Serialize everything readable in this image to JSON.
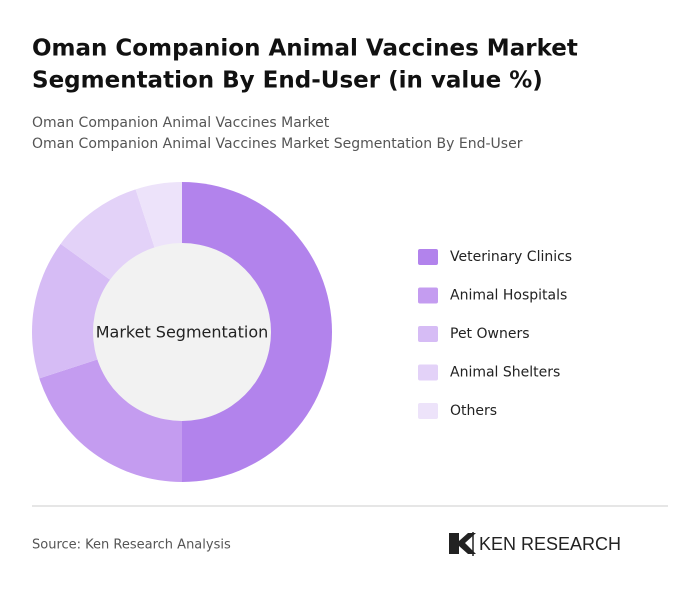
{
  "chart_data": {
    "type": "donut",
    "title": [
      "Oman Companion Animal Vaccines Market",
      "Segmentation By End-User (in value %)"
    ],
    "subtitle": [
      "Oman Companion Animal Vaccines Market",
      "Oman Companion Animal Vaccines Market Segmentation By End-User"
    ],
    "center_label": "Market Segmentation",
    "categories": [
      "Veterinary Clinics",
      "Animal Hospitals",
      "Pet Owners",
      "Animal Shelters",
      "Others"
    ],
    "values": [
      50,
      20,
      15,
      10,
      5
    ],
    "colors": [
      "#b283ec",
      "#c49cf0",
      "#d6bcf5",
      "#e3d2f8",
      "#ede3fa"
    ]
  },
  "footer": {
    "source": "Source: Ken Research Analysis",
    "logo": "KEN RESEARCH"
  }
}
